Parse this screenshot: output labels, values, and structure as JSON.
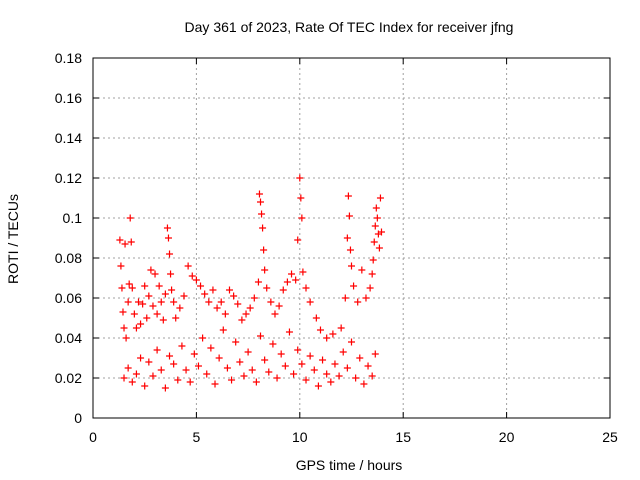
{
  "chart_data": {
    "type": "scatter",
    "title": "Day 361 of 2023, Rate Of TEC Index for receiver jfng",
    "xlabel": "GPS time / hours",
    "ylabel": "ROTI / TECUs",
    "xlim": [
      0,
      25
    ],
    "ylim": [
      0,
      0.18
    ],
    "xticks": [
      0,
      5,
      10,
      15,
      20,
      25
    ],
    "yticks": [
      0,
      0.02,
      0.04,
      0.06,
      0.08,
      0.1,
      0.12,
      0.14,
      0.16,
      0.18
    ],
    "xtick_labels": [
      "0",
      "5",
      "10",
      "15",
      "20",
      "25"
    ],
    "ytick_labels": [
      "0",
      "0.02",
      "0.04",
      "0.06",
      "0.08",
      "0.1",
      "0.12",
      "0.14",
      "0.16",
      "0.18"
    ],
    "grid": true,
    "marker": "+",
    "color": "#ff0000",
    "series": [
      {
        "name": "ROTI",
        "points": [
          [
            1.3,
            0.089
          ],
          [
            1.35,
            0.076
          ],
          [
            1.4,
            0.065
          ],
          [
            1.45,
            0.053
          ],
          [
            1.5,
            0.045
          ],
          [
            1.55,
            0.087
          ],
          [
            1.6,
            0.04
          ],
          [
            1.7,
            0.058
          ],
          [
            1.75,
            0.067
          ],
          [
            1.8,
            0.1
          ],
          [
            1.85,
            0.088
          ],
          [
            1.9,
            0.065
          ],
          [
            2.0,
            0.052
          ],
          [
            2.1,
            0.045
          ],
          [
            2.2,
            0.058
          ],
          [
            2.3,
            0.047
          ],
          [
            2.4,
            0.057
          ],
          [
            2.5,
            0.066
          ],
          [
            2.6,
            0.05
          ],
          [
            2.7,
            0.061
          ],
          [
            2.8,
            0.074
          ],
          [
            2.9,
            0.056
          ],
          [
            3.0,
            0.072
          ],
          [
            3.1,
            0.052
          ],
          [
            3.2,
            0.066
          ],
          [
            3.3,
            0.058
          ],
          [
            3.4,
            0.049
          ],
          [
            3.5,
            0.062
          ],
          [
            3.6,
            0.095
          ],
          [
            3.65,
            0.09
          ],
          [
            3.7,
            0.082
          ],
          [
            3.75,
            0.072
          ],
          [
            3.8,
            0.064
          ],
          [
            3.9,
            0.058
          ],
          [
            4.0,
            0.05
          ],
          [
            4.2,
            0.055
          ],
          [
            4.4,
            0.061
          ],
          [
            4.6,
            0.076
          ],
          [
            4.8,
            0.071
          ],
          [
            5.0,
            0.069
          ],
          [
            5.2,
            0.066
          ],
          [
            5.4,
            0.062
          ],
          [
            5.6,
            0.058
          ],
          [
            5.8,
            0.064
          ],
          [
            6.0,
            0.055
          ],
          [
            6.2,
            0.058
          ],
          [
            6.4,
            0.052
          ],
          [
            6.6,
            0.064
          ],
          [
            6.8,
            0.061
          ],
          [
            7.0,
            0.057
          ],
          [
            7.2,
            0.049
          ],
          [
            7.4,
            0.052
          ],
          [
            7.6,
            0.055
          ],
          [
            7.8,
            0.06
          ],
          [
            8.0,
            0.068
          ],
          [
            8.05,
            0.112
          ],
          [
            8.1,
            0.108
          ],
          [
            8.15,
            0.102
          ],
          [
            8.2,
            0.095
          ],
          [
            8.25,
            0.084
          ],
          [
            8.3,
            0.074
          ],
          [
            8.4,
            0.065
          ],
          [
            8.6,
            0.058
          ],
          [
            8.8,
            0.052
          ],
          [
            9.0,
            0.056
          ],
          [
            9.2,
            0.064
          ],
          [
            9.4,
            0.068
          ],
          [
            9.6,
            0.072
          ],
          [
            9.8,
            0.069
          ],
          [
            9.9,
            0.089
          ],
          [
            10.0,
            0.12
          ],
          [
            10.05,
            0.11
          ],
          [
            10.1,
            0.1
          ],
          [
            10.15,
            0.073
          ],
          [
            10.3,
            0.065
          ],
          [
            10.5,
            0.058
          ],
          [
            10.8,
            0.05
          ],
          [
            11.0,
            0.044
          ],
          [
            11.3,
            0.04
          ],
          [
            11.6,
            0.042
          ],
          [
            12.0,
            0.045
          ],
          [
            12.2,
            0.06
          ],
          [
            12.3,
            0.09
          ],
          [
            12.35,
            0.111
          ],
          [
            12.4,
            0.101
          ],
          [
            12.45,
            0.084
          ],
          [
            12.5,
            0.076
          ],
          [
            12.6,
            0.066
          ],
          [
            12.8,
            0.058
          ],
          [
            13.0,
            0.074
          ],
          [
            13.2,
            0.06
          ],
          [
            13.4,
            0.065
          ],
          [
            13.5,
            0.072
          ],
          [
            13.55,
            0.079
          ],
          [
            13.6,
            0.088
          ],
          [
            13.65,
            0.096
          ],
          [
            13.7,
            0.105
          ],
          [
            13.75,
            0.1
          ],
          [
            13.8,
            0.092
          ],
          [
            13.85,
            0.085
          ],
          [
            13.9,
            0.11
          ],
          [
            13.95,
            0.093
          ],
          [
            1.5,
            0.02
          ],
          [
            1.7,
            0.025
          ],
          [
            1.9,
            0.018
          ],
          [
            2.1,
            0.022
          ],
          [
            2.3,
            0.03
          ],
          [
            2.5,
            0.016
          ],
          [
            2.7,
            0.028
          ],
          [
            2.9,
            0.021
          ],
          [
            3.1,
            0.034
          ],
          [
            3.3,
            0.024
          ],
          [
            3.5,
            0.015
          ],
          [
            3.7,
            0.031
          ],
          [
            3.9,
            0.027
          ],
          [
            4.1,
            0.019
          ],
          [
            4.3,
            0.036
          ],
          [
            4.5,
            0.024
          ],
          [
            4.7,
            0.018
          ],
          [
            4.9,
            0.032
          ],
          [
            5.1,
            0.026
          ],
          [
            5.3,
            0.04
          ],
          [
            5.5,
            0.022
          ],
          [
            5.7,
            0.035
          ],
          [
            5.9,
            0.017
          ],
          [
            6.1,
            0.03
          ],
          [
            6.3,
            0.044
          ],
          [
            6.5,
            0.025
          ],
          [
            6.7,
            0.019
          ],
          [
            6.9,
            0.038
          ],
          [
            7.1,
            0.028
          ],
          [
            7.3,
            0.021
          ],
          [
            7.5,
            0.033
          ],
          [
            7.7,
            0.024
          ],
          [
            7.9,
            0.018
          ],
          [
            8.1,
            0.041
          ],
          [
            8.3,
            0.029
          ],
          [
            8.5,
            0.023
          ],
          [
            8.7,
            0.037
          ],
          [
            8.9,
            0.02
          ],
          [
            9.1,
            0.032
          ],
          [
            9.3,
            0.026
          ],
          [
            9.5,
            0.043
          ],
          [
            9.7,
            0.022
          ],
          [
            9.9,
            0.034
          ],
          [
            10.1,
            0.027
          ],
          [
            10.3,
            0.019
          ],
          [
            10.5,
            0.031
          ],
          [
            10.7,
            0.024
          ],
          [
            10.9,
            0.016
          ],
          [
            11.1,
            0.029
          ],
          [
            11.3,
            0.022
          ],
          [
            11.5,
            0.018
          ],
          [
            11.7,
            0.027
          ],
          [
            11.9,
            0.021
          ],
          [
            12.1,
            0.033
          ],
          [
            12.3,
            0.025
          ],
          [
            12.5,
            0.038
          ],
          [
            12.7,
            0.02
          ],
          [
            12.9,
            0.03
          ],
          [
            13.1,
            0.017
          ],
          [
            13.3,
            0.026
          ],
          [
            13.5,
            0.021
          ],
          [
            13.65,
            0.032
          ]
        ]
      }
    ]
  }
}
